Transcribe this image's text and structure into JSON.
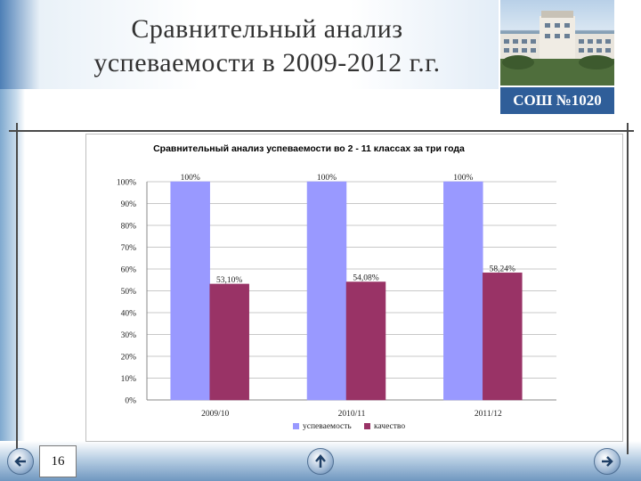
{
  "slide": {
    "title_line1": "Сравнительный анализ",
    "title_line2": "успеваемости в 2009-2012 г.г.",
    "school_badge": "СОШ №1020",
    "page_number": "16"
  },
  "nav": {
    "prev_icon": "arrow-left-icon",
    "up_icon": "arrow-up-icon",
    "next_icon": "arrow-right-icon"
  },
  "chart_data": {
    "type": "bar",
    "title": "Сравнительный анализ успеваемости во 2 - 11 классах за три года",
    "categories": [
      "2009/10",
      "2010/11",
      "2011/12"
    ],
    "series": [
      {
        "name": "успеваемость",
        "values": [
          100,
          100,
          100
        ],
        "labels": [
          "100%",
          "100%",
          "100%"
        ],
        "color": "#9999ff"
      },
      {
        "name": "качество",
        "values": [
          53.1,
          54.08,
          58.24
        ],
        "labels": [
          "53,10%",
          "54,08%",
          "58,24%"
        ],
        "color": "#993366"
      }
    ],
    "ylim": [
      0,
      100
    ],
    "yticks": [
      "0%",
      "10%",
      "20%",
      "30%",
      "40%",
      "50%",
      "60%",
      "70%",
      "80%",
      "90%",
      "100%"
    ],
    "grid": true,
    "legend_position": "bottom"
  }
}
